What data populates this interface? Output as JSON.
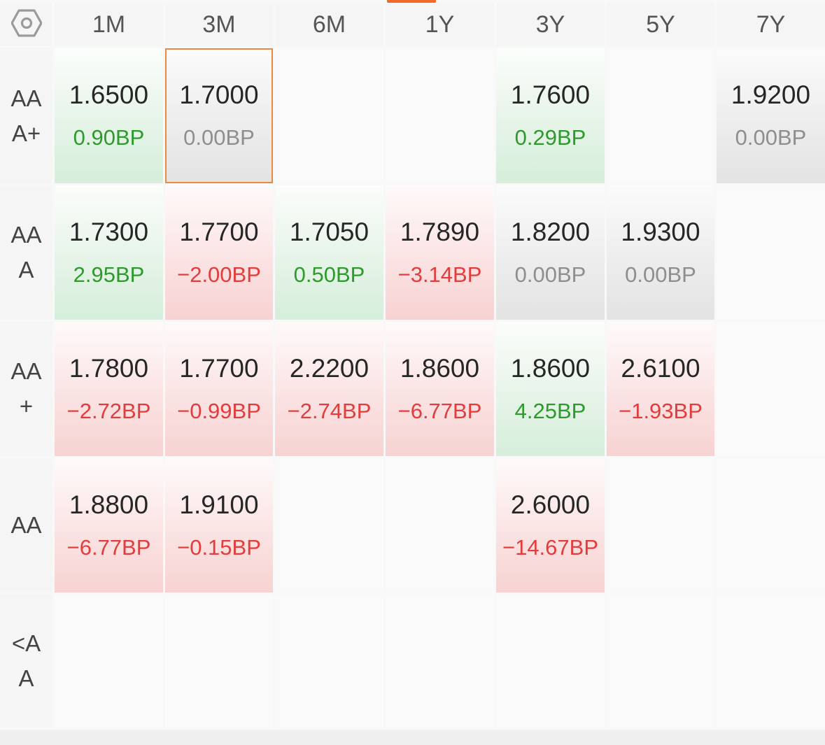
{
  "colors": {
    "up": "#2e9a2e",
    "down": "#e23c3c",
    "flat": "#8e8e8e",
    "selected_border": "#e98a3f",
    "accent": "#f26a2a"
  },
  "settings_icon": "hexagon-settings-icon",
  "columns": [
    "1M",
    "3M",
    "6M",
    "1Y",
    "3Y",
    "5Y",
    "7Y"
  ],
  "rows": [
    {
      "label_lines": [
        "AA",
        "A+"
      ],
      "cells": [
        {
          "rate": "1.6500",
          "change": "0.90BP",
          "trend": "up"
        },
        {
          "rate": "1.7000",
          "change": "0.00BP",
          "trend": "flat",
          "selected": true
        },
        null,
        null,
        {
          "rate": "1.7600",
          "change": "0.29BP",
          "trend": "up"
        },
        null,
        {
          "rate": "1.9200",
          "change": "0.00BP",
          "trend": "flat"
        }
      ]
    },
    {
      "label_lines": [
        "AA",
        "A"
      ],
      "cells": [
        {
          "rate": "1.7300",
          "change": "2.95BP",
          "trend": "up"
        },
        {
          "rate": "1.7700",
          "change": "−2.00BP",
          "trend": "down"
        },
        {
          "rate": "1.7050",
          "change": "0.50BP",
          "trend": "up"
        },
        {
          "rate": "1.7890",
          "change": "−3.14BP",
          "trend": "down"
        },
        {
          "rate": "1.8200",
          "change": "0.00BP",
          "trend": "flat"
        },
        {
          "rate": "1.9300",
          "change": "0.00BP",
          "trend": "flat"
        },
        null
      ]
    },
    {
      "label_lines": [
        "AA",
        "+"
      ],
      "cells": [
        {
          "rate": "1.7800",
          "change": "−2.72BP",
          "trend": "down"
        },
        {
          "rate": "1.7700",
          "change": "−0.99BP",
          "trend": "down"
        },
        {
          "rate": "2.2200",
          "change": "−2.74BP",
          "trend": "down"
        },
        {
          "rate": "1.8600",
          "change": "−6.77BP",
          "trend": "down"
        },
        {
          "rate": "1.8600",
          "change": "4.25BP",
          "trend": "up"
        },
        {
          "rate": "2.6100",
          "change": "−1.93BP",
          "trend": "down"
        },
        null
      ]
    },
    {
      "label_lines": [
        "AA"
      ],
      "cells": [
        {
          "rate": "1.8800",
          "change": "−6.77BP",
          "trend": "down"
        },
        {
          "rate": "1.9100",
          "change": "−0.15BP",
          "trend": "down"
        },
        null,
        null,
        {
          "rate": "2.6000",
          "change": "−14.67BP",
          "trend": "down"
        },
        null,
        null
      ]
    },
    {
      "label_lines": [
        "<A",
        "A"
      ],
      "cells": [
        null,
        null,
        null,
        null,
        null,
        null,
        null
      ]
    }
  ]
}
